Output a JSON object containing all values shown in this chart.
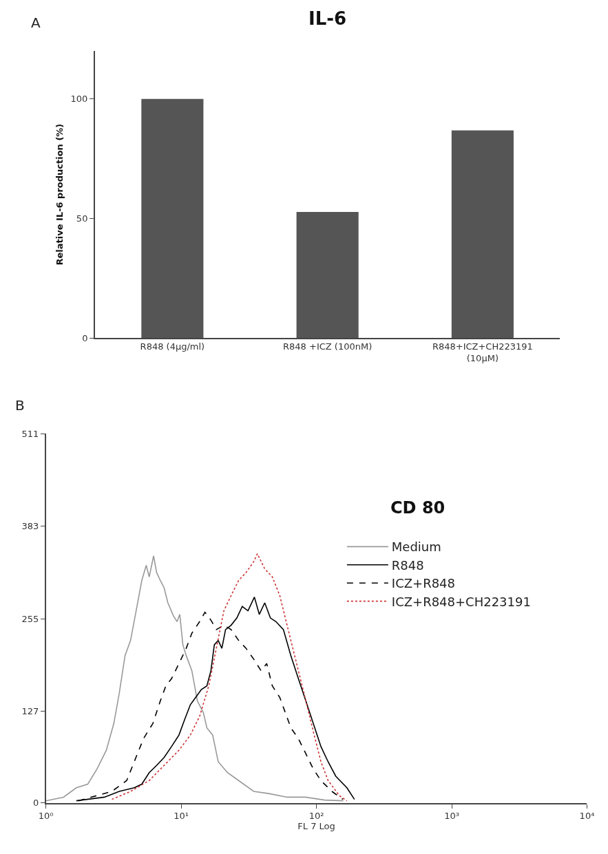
{
  "chart_data": [
    {
      "type": "bar",
      "title": "IL-6",
      "ylabel": "Relative IL-6 production (%)",
      "categories": [
        "R848 (4μg/ml)",
        "R848 +ICZ (100nM)",
        "R848+ICZ+CH223191\n(10μM)"
      ],
      "values": [
        100,
        52.7,
        86.8
      ],
      "color": "#555555",
      "ylim": [
        0,
        120
      ],
      "yticks": [
        0,
        50,
        100
      ],
      "annotations": [
        "A"
      ]
    },
    {
      "type": "line",
      "title": "CD 80",
      "xlabel": "FL 7 Log",
      "log": "x",
      "xlim": [
        1,
        10000
      ],
      "xticks": [
        {
          "value": 1,
          "label": "10⁰"
        },
        {
          "value": 10,
          "label": "10¹"
        },
        {
          "value": 100,
          "label": "10²"
        },
        {
          "value": 1000,
          "label": "10³"
        },
        {
          "value": 10000,
          "label": "10⁴"
        }
      ],
      "ylim": [
        0,
        511
      ],
      "yticks": [
        0,
        127,
        255,
        383,
        511
      ],
      "legend": "right",
      "marker": "none",
      "annotations": [
        "B"
      ],
      "series": [
        {
          "name": "Medium",
          "color": "#999999",
          "line_style": "solid",
          "x": [
            1,
            1.35,
            1.68,
            2.04,
            2.39,
            2.8,
            3.18,
            3.49,
            3.85,
            4.23,
            4.65,
            5.12,
            5.52,
            5.81,
            6.26,
            6.59,
            7.01,
            7.48,
            7.98,
            8.77,
            9.33,
            9.77,
            10.3,
            10.9,
            12.0,
            13.2,
            14.6,
            15.5,
            17.1,
            18.8,
            22.0,
            26.6,
            34.4,
            44.3,
            60.8,
            83,
            115,
            158
          ],
          "values": [
            3,
            8,
            21,
            26,
            47,
            73,
            110,
            152,
            204,
            225,
            266,
            308,
            329,
            313,
            342,
            319,
            308,
            298,
            277,
            259,
            251,
            261,
            219,
            204,
            183,
            141,
            125,
            104,
            94,
            57,
            42,
            31,
            16,
            13,
            8,
            8,
            4,
            3
          ]
        },
        {
          "name": "R848",
          "color": "#000000",
          "line_style": "solid",
          "x": [
            1.68,
            2.71,
            3.49,
            4.5,
            5.12,
            5.81,
            6.59,
            7.48,
            8.49,
            9.64,
            10.6,
            11.7,
            12.8,
            14.1,
            15.5,
            16.6,
            17.6,
            18.8,
            20.0,
            21.3,
            23.4,
            25.8,
            28.3,
            31.2,
            34.8,
            37.8,
            41.5,
            45.7,
            50.2,
            57.0,
            64.7,
            73.6,
            83.6,
            94.8,
            108,
            122,
            139,
            168,
            191
          ],
          "values": [
            3,
            8,
            16,
            21,
            26,
            42,
            52,
            63,
            78,
            94,
            115,
            136,
            146,
            157,
            162,
            183,
            219,
            225,
            214,
            240,
            246,
            256,
            272,
            266,
            285,
            261,
            277,
            256,
            251,
            240,
            204,
            172,
            141,
            110,
            78,
            57,
            37,
            21,
            5
          ]
        },
        {
          "name": "ICZ+R848",
          "color": "#000000",
          "line_style": "dashed",
          "x": [
            1.74,
            3.08,
            3.96,
            4.5,
            5.27,
            6.18,
            7.01,
            7.71,
            8.49,
            9.64,
            10.9,
            12.0,
            13.7,
            15.0,
            16.6,
            18.2,
            20.7,
            23.4,
            26.6,
            30.2,
            34.4,
            39.0,
            42.9,
            47.2,
            53.6,
            58.9,
            64.7,
            73.6,
            83.6,
            94.8,
            108,
            130,
            157
          ],
          "values": [
            3,
            16,
            31,
            57,
            89,
            110,
            141,
            162,
            172,
            193,
            214,
            235,
            251,
            264,
            253,
            240,
            246,
            240,
            225,
            214,
            199,
            183,
            193,
            162,
            146,
            125,
            104,
            89,
            68,
            47,
            31,
            16,
            5
          ]
        },
        {
          "name": "ICZ+R848+CH223191",
          "color": "#cc3333",
          "line_style": "dotted",
          "x": [
            3.08,
            4.23,
            5.81,
            7.48,
            9.64,
            11.7,
            13.7,
            16.0,
            18.2,
            20.7,
            23.4,
            26.6,
            30.2,
            34.4,
            36.6,
            41.5,
            47.2,
            53.6,
            58.9,
            64.7,
            73.6,
            83.6,
            94.8,
            108,
            122,
            148,
            168
          ],
          "values": [
            5,
            16,
            31,
            52,
            73,
            94,
            120,
            162,
            214,
            266,
            287,
            308,
            319,
            334,
            345,
            324,
            313,
            287,
            256,
            225,
            183,
            141,
            99,
            57,
            31,
            10,
            3
          ]
        }
      ]
    }
  ]
}
